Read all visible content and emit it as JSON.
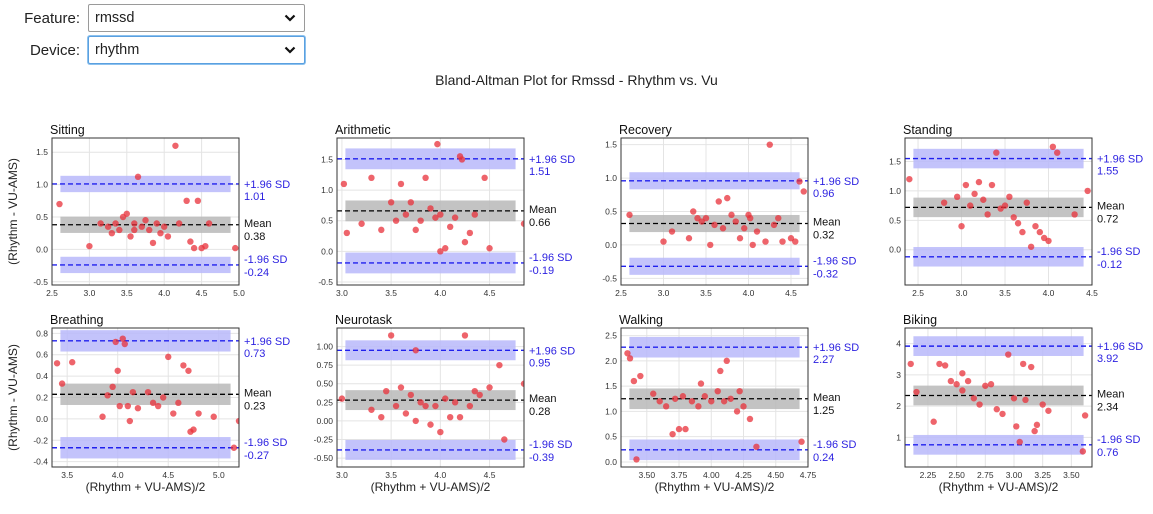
{
  "controls": {
    "feature": {
      "label": "Feature:",
      "value": "rmssd"
    },
    "device": {
      "label": "Device:",
      "value": "rhythm"
    }
  },
  "colors": {
    "points": "#e8303a",
    "limits": "#2020ee",
    "limit_band": "#b9b9fa",
    "mean_band": "#b8b8b8",
    "mean_line": "#000000"
  },
  "chart_data": {
    "type": "scatter",
    "title": "Bland-Altman Plot for Rmssd - Rhythm vs. Vu",
    "xlabel": "(Rhythm + VU-AMS)/2",
    "ylabel": "(Rhythm - VU-AMS)",
    "labels": {
      "upper": "+1.96 SD",
      "mean": "Mean",
      "lower": "-1.96 SD"
    },
    "panels": [
      {
        "name": "Sitting",
        "mean": "0.38",
        "upper": "1.01",
        "lower": "-0.24",
        "mean_v": 0.38,
        "upper_v": 1.01,
        "lower_v": -0.24,
        "xlim": [
          2.5,
          5.0
        ],
        "ylim": [
          -0.55,
          1.72
        ],
        "xticks": [
          "2.5",
          "3.0",
          "3.5",
          "4.0",
          "4.5",
          "5.0"
        ],
        "yticks": [
          "-0.5",
          "0.0",
          "0.5",
          "1.0",
          "1.5"
        ],
        "points": [
          [
            2.6,
            0.7
          ],
          [
            3.0,
            0.05
          ],
          [
            3.15,
            0.4
          ],
          [
            3.25,
            0.35
          ],
          [
            3.3,
            0.25
          ],
          [
            3.35,
            0.4
          ],
          [
            3.4,
            0.3
          ],
          [
            3.45,
            0.5
          ],
          [
            3.5,
            0.55
          ],
          [
            3.55,
            0.2
          ],
          [
            3.6,
            0.4
          ],
          [
            3.6,
            0.3
          ],
          [
            3.65,
            1.12
          ],
          [
            3.7,
            0.35
          ],
          [
            3.75,
            0.45
          ],
          [
            3.8,
            0.3
          ],
          [
            3.85,
            0.1
          ],
          [
            3.9,
            0.4
          ],
          [
            3.95,
            0.25
          ],
          [
            4.0,
            0.35
          ],
          [
            4.05,
            0.2
          ],
          [
            4.15,
            1.6
          ],
          [
            4.2,
            0.4
          ],
          [
            4.3,
            0.75
          ],
          [
            4.35,
            0.12
          ],
          [
            4.4,
            0.02
          ],
          [
            4.45,
            0.75
          ],
          [
            4.5,
            0.02
          ],
          [
            4.55,
            0.05
          ],
          [
            4.6,
            0.4
          ],
          [
            4.95,
            0.02
          ]
        ]
      },
      {
        "name": "Arithmetic",
        "mean": "0.66",
        "upper": "1.51",
        "lower": "-0.19",
        "mean_v": 0.66,
        "upper_v": 1.51,
        "lower_v": -0.19,
        "xlim": [
          2.95,
          4.85
        ],
        "ylim": [
          -0.55,
          1.85
        ],
        "xticks": [
          "3.0",
          "3.5",
          "4.0",
          "4.5"
        ],
        "yticks": [
          "-0.5",
          "0.0",
          "0.5",
          "1.0",
          "1.5"
        ],
        "points": [
          [
            3.02,
            1.1
          ],
          [
            3.05,
            0.3
          ],
          [
            3.2,
            0.45
          ],
          [
            3.3,
            1.2
          ],
          [
            3.4,
            0.35
          ],
          [
            3.5,
            0.8
          ],
          [
            3.55,
            0.5
          ],
          [
            3.6,
            1.1
          ],
          [
            3.65,
            0.6
          ],
          [
            3.7,
            0.8
          ],
          [
            3.75,
            0.35
          ],
          [
            3.8,
            0.5
          ],
          [
            3.85,
            1.2
          ],
          [
            3.9,
            0.7
          ],
          [
            3.95,
            0.55
          ],
          [
            3.97,
            1.75
          ],
          [
            4.0,
            0.6
          ],
          [
            4.05,
            0.05
          ],
          [
            4.1,
            0.4
          ],
          [
            4.15,
            0.55
          ],
          [
            4.2,
            1.55
          ],
          [
            4.22,
            1.5
          ],
          [
            4.25,
            0.15
          ],
          [
            4.3,
            0.3
          ],
          [
            4.35,
            0.6
          ],
          [
            4.45,
            1.2
          ],
          [
            4.5,
            0.05
          ],
          [
            4.85,
            0.45
          ],
          [
            4.0,
            0.0
          ]
        ]
      },
      {
        "name": "Recovery",
        "mean": "0.32",
        "upper": "0.96",
        "lower": "-0.32",
        "mean_v": 0.32,
        "upper_v": 0.96,
        "lower_v": -0.32,
        "xlim": [
          2.5,
          4.7
        ],
        "ylim": [
          -0.6,
          1.6
        ],
        "xticks": [
          "2.5",
          "3.0",
          "3.5",
          "4.0",
          "4.5"
        ],
        "yticks": [
          "-0.5",
          "0.0",
          "0.5",
          "1.0",
          "1.5"
        ],
        "points": [
          [
            2.6,
            0.45
          ],
          [
            3.0,
            0.05
          ],
          [
            3.1,
            0.2
          ],
          [
            3.3,
            0.1
          ],
          [
            3.35,
            0.5
          ],
          [
            3.4,
            0.4
          ],
          [
            3.45,
            0.35
          ],
          [
            3.5,
            0.4
          ],
          [
            3.55,
            0.0
          ],
          [
            3.6,
            0.3
          ],
          [
            3.65,
            0.65
          ],
          [
            3.7,
            0.25
          ],
          [
            3.75,
            0.7
          ],
          [
            3.8,
            0.45
          ],
          [
            3.85,
            0.35
          ],
          [
            3.9,
            0.1
          ],
          [
            3.95,
            0.25
          ],
          [
            4.0,
            0.45
          ],
          [
            4.02,
            0.4
          ],
          [
            4.05,
            0.0
          ],
          [
            4.1,
            0.2
          ],
          [
            4.2,
            0.05
          ],
          [
            4.25,
            1.5
          ],
          [
            4.3,
            0.3
          ],
          [
            4.35,
            0.4
          ],
          [
            4.4,
            0.05
          ],
          [
            4.5,
            0.1
          ],
          [
            4.55,
            0.05
          ],
          [
            4.6,
            0.95
          ],
          [
            4.65,
            0.8
          ]
        ]
      },
      {
        "name": "Standing",
        "mean": "0.72",
        "upper": "1.55",
        "lower": "-0.12",
        "mean_v": 0.72,
        "upper_v": 1.55,
        "lower_v": -0.12,
        "xlim": [
          2.35,
          4.5
        ],
        "ylim": [
          -0.6,
          1.9
        ],
        "xticks": [
          "2.5",
          "3.0",
          "3.5",
          "4.0",
          "4.5"
        ],
        "yticks": [
          "0.0",
          "0.5",
          "1.0",
          "1.5"
        ],
        "points": [
          [
            2.4,
            1.2
          ],
          [
            2.8,
            0.8
          ],
          [
            2.95,
            0.9
          ],
          [
            3.0,
            0.4
          ],
          [
            3.05,
            1.1
          ],
          [
            3.1,
            0.75
          ],
          [
            3.15,
            0.95
          ],
          [
            3.2,
            1.15
          ],
          [
            3.25,
            0.85
          ],
          [
            3.3,
            0.6
          ],
          [
            3.35,
            1.1
          ],
          [
            3.4,
            1.65
          ],
          [
            3.45,
            0.7
          ],
          [
            3.5,
            0.75
          ],
          [
            3.55,
            0.9
          ],
          [
            3.6,
            0.55
          ],
          [
            3.65,
            0.45
          ],
          [
            3.7,
            0.3
          ],
          [
            3.75,
            0.8
          ],
          [
            3.8,
            0.05
          ],
          [
            3.85,
            0.4
          ],
          [
            3.9,
            0.3
          ],
          [
            3.95,
            0.2
          ],
          [
            4.0,
            0.15
          ],
          [
            4.05,
            1.75
          ],
          [
            4.1,
            1.65
          ],
          [
            4.3,
            0.6
          ],
          [
            4.45,
            1.0
          ]
        ]
      },
      {
        "name": "Breathing",
        "mean": "0.23",
        "upper": "0.73",
        "lower": "-0.27",
        "mean_v": 0.23,
        "upper_v": 0.73,
        "lower_v": -0.27,
        "xlim": [
          3.35,
          5.2
        ],
        "ylim": [
          -0.45,
          0.85
        ],
        "xticks": [
          "3.5",
          "4.0",
          "4.5",
          "5.0"
        ],
        "yticks": [
          "-0.4",
          "-0.2",
          "0.0",
          "0.2",
          "0.4",
          "0.6",
          "0.8"
        ],
        "points": [
          [
            3.4,
            0.52
          ],
          [
            3.45,
            0.33
          ],
          [
            3.55,
            0.53
          ],
          [
            3.85,
            0.02
          ],
          [
            3.9,
            0.22
          ],
          [
            3.95,
            0.3
          ],
          [
            3.98,
            0.72
          ],
          [
            4.0,
            0.45
          ],
          [
            4.02,
            0.12
          ],
          [
            4.05,
            0.75
          ],
          [
            4.07,
            0.7
          ],
          [
            4.1,
            0.12
          ],
          [
            4.12,
            -0.02
          ],
          [
            4.15,
            0.25
          ],
          [
            4.2,
            0.1
          ],
          [
            4.3,
            0.25
          ],
          [
            4.35,
            0.15
          ],
          [
            4.4,
            0.12
          ],
          [
            4.45,
            0.2
          ],
          [
            4.5,
            0.58
          ],
          [
            4.55,
            0.05
          ],
          [
            4.6,
            0.15
          ],
          [
            4.65,
            0.5
          ],
          [
            4.7,
            0.45
          ],
          [
            4.72,
            -0.12
          ],
          [
            4.75,
            -0.1
          ],
          [
            4.8,
            0.05
          ],
          [
            4.95,
            0.02
          ],
          [
            5.15,
            -0.27
          ],
          [
            5.2,
            -0.02
          ]
        ]
      },
      {
        "name": "Neurotask",
        "mean": "0.28",
        "upper": "0.95",
        "lower": "-0.39",
        "mean_v": 0.28,
        "upper_v": 0.95,
        "lower_v": -0.39,
        "xlim": [
          2.95,
          4.85
        ],
        "ylim": [
          -0.62,
          1.25
        ],
        "xticks": [
          "3.0",
          "3.5",
          "4.0",
          "4.5"
        ],
        "yticks": [
          "-0.50",
          "-0.25",
          "0.00",
          "0.25",
          "0.50",
          "0.75",
          "1.00"
        ],
        "points": [
          [
            3.0,
            0.3
          ],
          [
            3.3,
            0.15
          ],
          [
            3.4,
            0.05
          ],
          [
            3.45,
            0.4
          ],
          [
            3.5,
            1.15
          ],
          [
            3.55,
            0.2
          ],
          [
            3.6,
            0.45
          ],
          [
            3.65,
            0.1
          ],
          [
            3.7,
            0.35
          ],
          [
            3.75,
            0.0
          ],
          [
            3.75,
            0.95
          ],
          [
            3.8,
            0.25
          ],
          [
            3.85,
            0.2
          ],
          [
            3.9,
            -0.05
          ],
          [
            3.95,
            0.2
          ],
          [
            4.0,
            -0.15
          ],
          [
            4.05,
            0.3
          ],
          [
            4.1,
            0.05
          ],
          [
            4.15,
            0.25
          ],
          [
            4.2,
            0.05
          ],
          [
            4.25,
            1.15
          ],
          [
            4.3,
            0.2
          ],
          [
            4.35,
            0.4
          ],
          [
            4.4,
            0.35
          ],
          [
            4.5,
            0.45
          ],
          [
            4.6,
            0.75
          ],
          [
            4.65,
            -0.25
          ],
          [
            4.85,
            0.5
          ]
        ]
      },
      {
        "name": "Walking",
        "mean": "1.25",
        "upper": "2.27",
        "lower": "0.24",
        "mean_v": 1.25,
        "upper_v": 2.27,
        "lower_v": 0.24,
        "xlim": [
          3.3,
          4.75
        ],
        "ylim": [
          -0.1,
          2.65
        ],
        "xticks": [
          "3.50",
          "3.75",
          "4.00",
          "4.25",
          "4.50",
          "4.75"
        ],
        "yticks": [
          "0.0",
          "0.5",
          "1.0",
          "1.5",
          "2.0",
          "2.5"
        ],
        "points": [
          [
            3.35,
            2.15
          ],
          [
            3.37,
            2.05
          ],
          [
            3.4,
            1.6
          ],
          [
            3.42,
            0.05
          ],
          [
            3.45,
            1.7
          ],
          [
            3.55,
            1.35
          ],
          [
            3.6,
            1.2
          ],
          [
            3.65,
            1.1
          ],
          [
            3.7,
            0.55
          ],
          [
            3.72,
            1.25
          ],
          [
            3.75,
            0.65
          ],
          [
            3.78,
            1.3
          ],
          [
            3.8,
            0.65
          ],
          [
            3.85,
            1.2
          ],
          [
            3.9,
            1.1
          ],
          [
            3.92,
            1.55
          ],
          [
            3.95,
            1.3
          ],
          [
            4.0,
            1.2
          ],
          [
            4.05,
            1.4
          ],
          [
            4.07,
            1.8
          ],
          [
            4.1,
            1.2
          ],
          [
            4.12,
            2.0
          ],
          [
            4.15,
            1.25
          ],
          [
            4.2,
            1.0
          ],
          [
            4.22,
            1.4
          ],
          [
            4.25,
            1.1
          ],
          [
            4.3,
            0.85
          ],
          [
            4.35,
            0.3
          ],
          [
            4.7,
            0.4
          ]
        ]
      },
      {
        "name": "Biking",
        "mean": "2.34",
        "upper": "3.92",
        "lower": "0.76",
        "mean_v": 2.34,
        "upper_v": 3.92,
        "lower_v": 0.76,
        "xlim": [
          2.05,
          3.68
        ],
        "ylim": [
          0.05,
          4.5
        ],
        "xticks": [
          "2.25",
          "2.50",
          "2.75",
          "3.00",
          "3.25",
          "3.50"
        ],
        "yticks": [
          "1",
          "2",
          "3",
          "4"
        ],
        "points": [
          [
            2.1,
            3.35
          ],
          [
            2.15,
            2.45
          ],
          [
            2.3,
            1.5
          ],
          [
            2.35,
            3.35
          ],
          [
            2.4,
            3.3
          ],
          [
            2.45,
            2.8
          ],
          [
            2.5,
            2.7
          ],
          [
            2.55,
            2.5
          ],
          [
            2.55,
            3.05
          ],
          [
            2.6,
            2.8
          ],
          [
            2.65,
            2.25
          ],
          [
            2.7,
            2.05
          ],
          [
            2.75,
            2.65
          ],
          [
            2.8,
            2.7
          ],
          [
            2.85,
            1.9
          ],
          [
            2.9,
            1.75
          ],
          [
            2.95,
            3.65
          ],
          [
            3.0,
            2.25
          ],
          [
            3.02,
            1.35
          ],
          [
            3.05,
            0.85
          ],
          [
            3.08,
            3.35
          ],
          [
            3.1,
            2.2
          ],
          [
            3.15,
            3.25
          ],
          [
            3.18,
            1.2
          ],
          [
            3.2,
            1.4
          ],
          [
            3.25,
            2.05
          ],
          [
            3.3,
            1.85
          ],
          [
            3.6,
            0.55
          ],
          [
            3.62,
            1.7
          ]
        ]
      }
    ]
  }
}
